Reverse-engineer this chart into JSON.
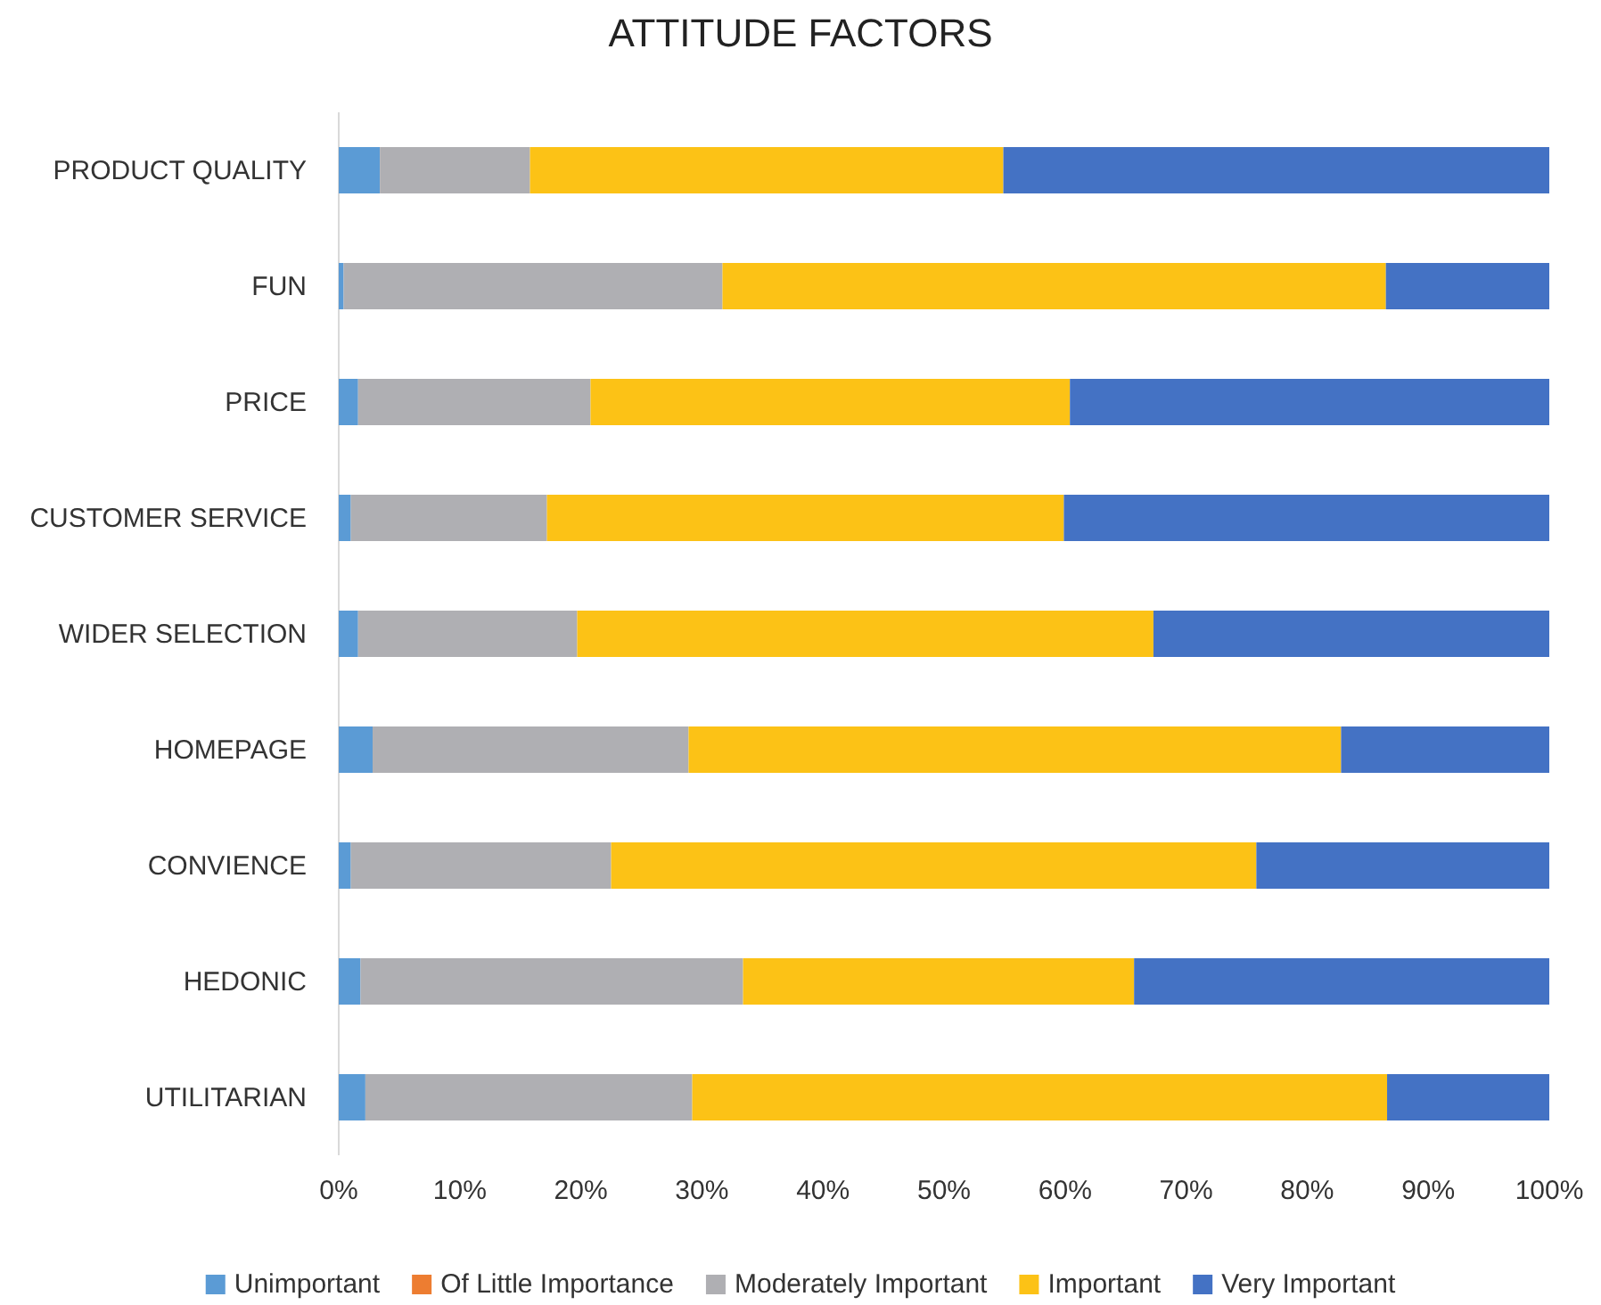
{
  "chart_data": {
    "type": "bar",
    "orientation": "horizontal",
    "stacked": true,
    "title": "ATTITUDE FACTORS",
    "categories": [
      "PRODUCT QUALITY",
      "FUN",
      "PRICE",
      "CUSTOMER SERVICE",
      "WIDER SELECTION",
      "HOMEPAGE",
      "CONVIENCE",
      "HEDONIC",
      "UTILITARIAN"
    ],
    "series": [
      {
        "name": "Unimportant",
        "color": "#5b9bd5",
        "values": [
          3.4,
          0.4,
          1.6,
          1.0,
          1.6,
          2.8,
          1.0,
          1.8,
          2.2
        ]
      },
      {
        "name": "Of Little Importance",
        "color": "#ed7d31",
        "values": [
          0,
          0,
          0,
          0,
          0,
          0,
          0,
          0,
          0
        ]
      },
      {
        "name": "Moderately Important",
        "color": "#afafb3",
        "values": [
          12.4,
          31.3,
          19.2,
          16.2,
          18.1,
          26.1,
          21.5,
          31.6,
          27.0
        ]
      },
      {
        "name": "Important",
        "color": "#fcc216",
        "values": [
          39.1,
          54.8,
          39.6,
          42.7,
          47.6,
          53.9,
          53.3,
          32.3,
          57.4
        ]
      },
      {
        "name": "Very Important",
        "color": "#4472c4",
        "values": [
          45.1,
          13.5,
          39.6,
          40.1,
          32.7,
          17.2,
          24.2,
          34.3,
          13.4
        ]
      }
    ],
    "xlim": [
      0,
      100
    ],
    "xticks": [
      {
        "value": 0,
        "label": "0%"
      },
      {
        "value": 10,
        "label": "10%"
      },
      {
        "value": 20,
        "label": "20%"
      },
      {
        "value": 30,
        "label": "30%"
      },
      {
        "value": 40,
        "label": "40%"
      },
      {
        "value": 50,
        "label": "50%"
      },
      {
        "value": 60,
        "label": "60%"
      },
      {
        "value": 70,
        "label": "70%"
      },
      {
        "value": 80,
        "label": "80%"
      },
      {
        "value": 90,
        "label": "90%"
      },
      {
        "value": 100,
        "label": "100%"
      }
    ],
    "grid": false,
    "legend": "bottom"
  }
}
